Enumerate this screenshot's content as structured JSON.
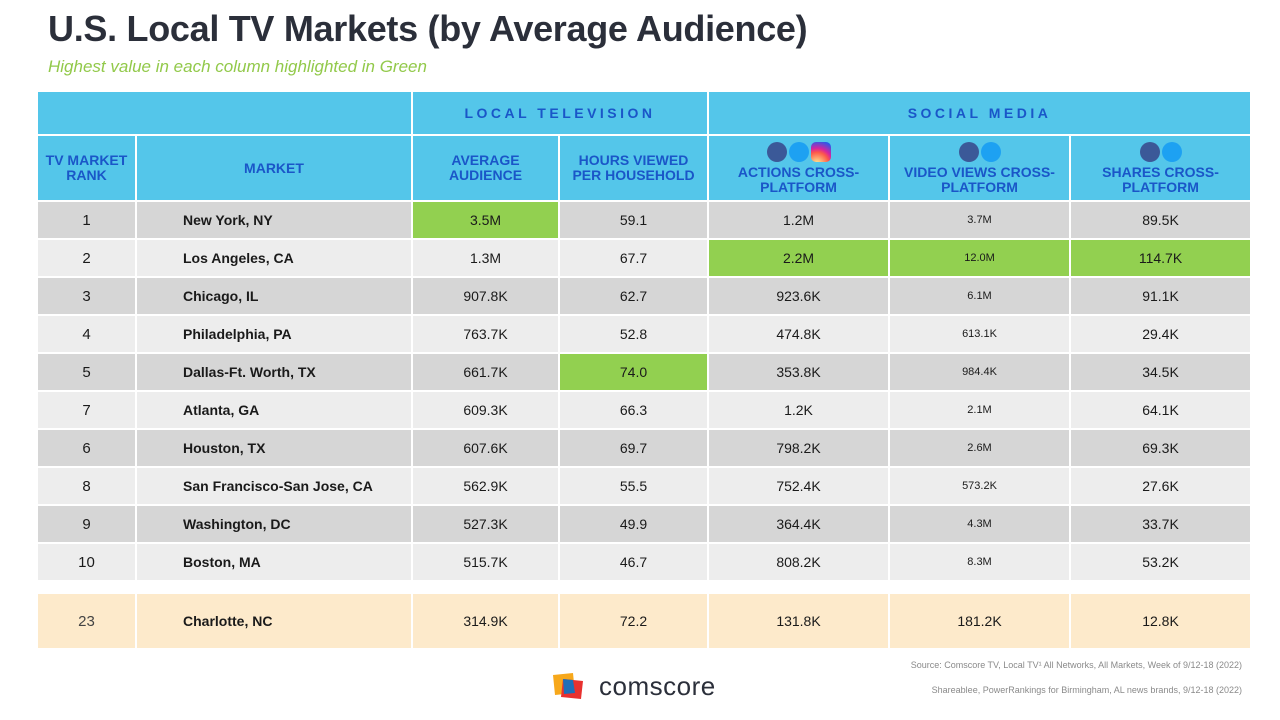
{
  "title": "U.S. Local TV Markets (by Average Audience)",
  "subtitle": "Highest value in each column highlighted in Green",
  "groups": {
    "local_tv": "LOCAL TELEVISION",
    "social": "SOCIAL MEDIA"
  },
  "columns": {
    "rank": "TV MARKET RANK",
    "market": "MARKET",
    "avg_audience": "AVERAGE AUDIENCE",
    "hours": "HOURS VIEWED PER HOUSEHOLD",
    "actions": "ACTIONS CROSS- PLATFORM",
    "video": "VIDEO VIEWS CROSS-PLATFORM",
    "shares": "SHARES CROSS-PLATFORM"
  },
  "icons": {
    "actions": [
      "facebook-icon",
      "twitter-icon",
      "instagram-icon"
    ],
    "video": [
      "facebook-icon",
      "twitter-icon"
    ],
    "shares": [
      "facebook-icon",
      "twitter-icon"
    ]
  },
  "colors": {
    "header": "#54c6ea",
    "header_text": "#1a56c8",
    "highlight": "#92d050",
    "local_row": "#fdeacb"
  },
  "rows": [
    {
      "rank": "1",
      "market": "New York, NY",
      "avg": "3.5M",
      "hours": "59.1",
      "actions": "1.2M",
      "video": "3.7M",
      "shares": "89.5K"
    },
    {
      "rank": "2",
      "market": "Los Angeles, CA",
      "avg": "1.3M",
      "hours": "67.7",
      "actions": "2.2M",
      "video": "12.0M",
      "shares": "114.7K"
    },
    {
      "rank": "3",
      "market": "Chicago, IL",
      "avg": "907.8K",
      "hours": "62.7",
      "actions": "923.6K",
      "video": "6.1M",
      "shares": "91.1K"
    },
    {
      "rank": "4",
      "market": "Philadelphia, PA",
      "avg": "763.7K",
      "hours": "52.8",
      "actions": "474.8K",
      "video": "613.1K",
      "shares": "29.4K"
    },
    {
      "rank": "5",
      "market": "Dallas-Ft. Worth, TX",
      "avg": "661.7K",
      "hours": "74.0",
      "actions": "353.8K",
      "video": "984.4K",
      "shares": "34.5K"
    },
    {
      "rank": "7",
      "market": "Atlanta, GA",
      "avg": "609.3K",
      "hours": "66.3",
      "actions": "1.2K",
      "video": "2.1M",
      "shares": "64.1K"
    },
    {
      "rank": "6",
      "market": "Houston, TX",
      "avg": "607.6K",
      "hours": "69.7",
      "actions": "798.2K",
      "video": "2.6M",
      "shares": "69.3K"
    },
    {
      "rank": "8",
      "market": "San Francisco-San Jose, CA",
      "avg": "562.9K",
      "hours": "55.5",
      "actions": "752.4K",
      "video": "573.2K",
      "shares": "27.6K"
    },
    {
      "rank": "9",
      "market": "Washington, DC",
      "avg": "527.3K",
      "hours": "49.9",
      "actions": "364.4K",
      "video": "4.3M",
      "shares": "33.7K"
    },
    {
      "rank": "10",
      "market": "Boston, MA",
      "avg": "515.7K",
      "hours": "46.7",
      "actions": "808.2K",
      "video": "8.3M",
      "shares": "53.2K"
    }
  ],
  "local_row": {
    "rank": "23",
    "market": "Charlotte, NC",
    "avg": "314.9K",
    "hours": "72.2",
    "actions": "131.8K",
    "video": "181.2K",
    "shares": "12.8K"
  },
  "sources": {
    "line1": "Source: Comscore TV, Local TV¹ All Networks, All Markets, Week of 9/12-18 (2022)",
    "line2": "Shareablee, PowerRankings for Birmingham, AL news brands, 9/12-18 (2022)"
  },
  "logo_text": "comscore"
}
